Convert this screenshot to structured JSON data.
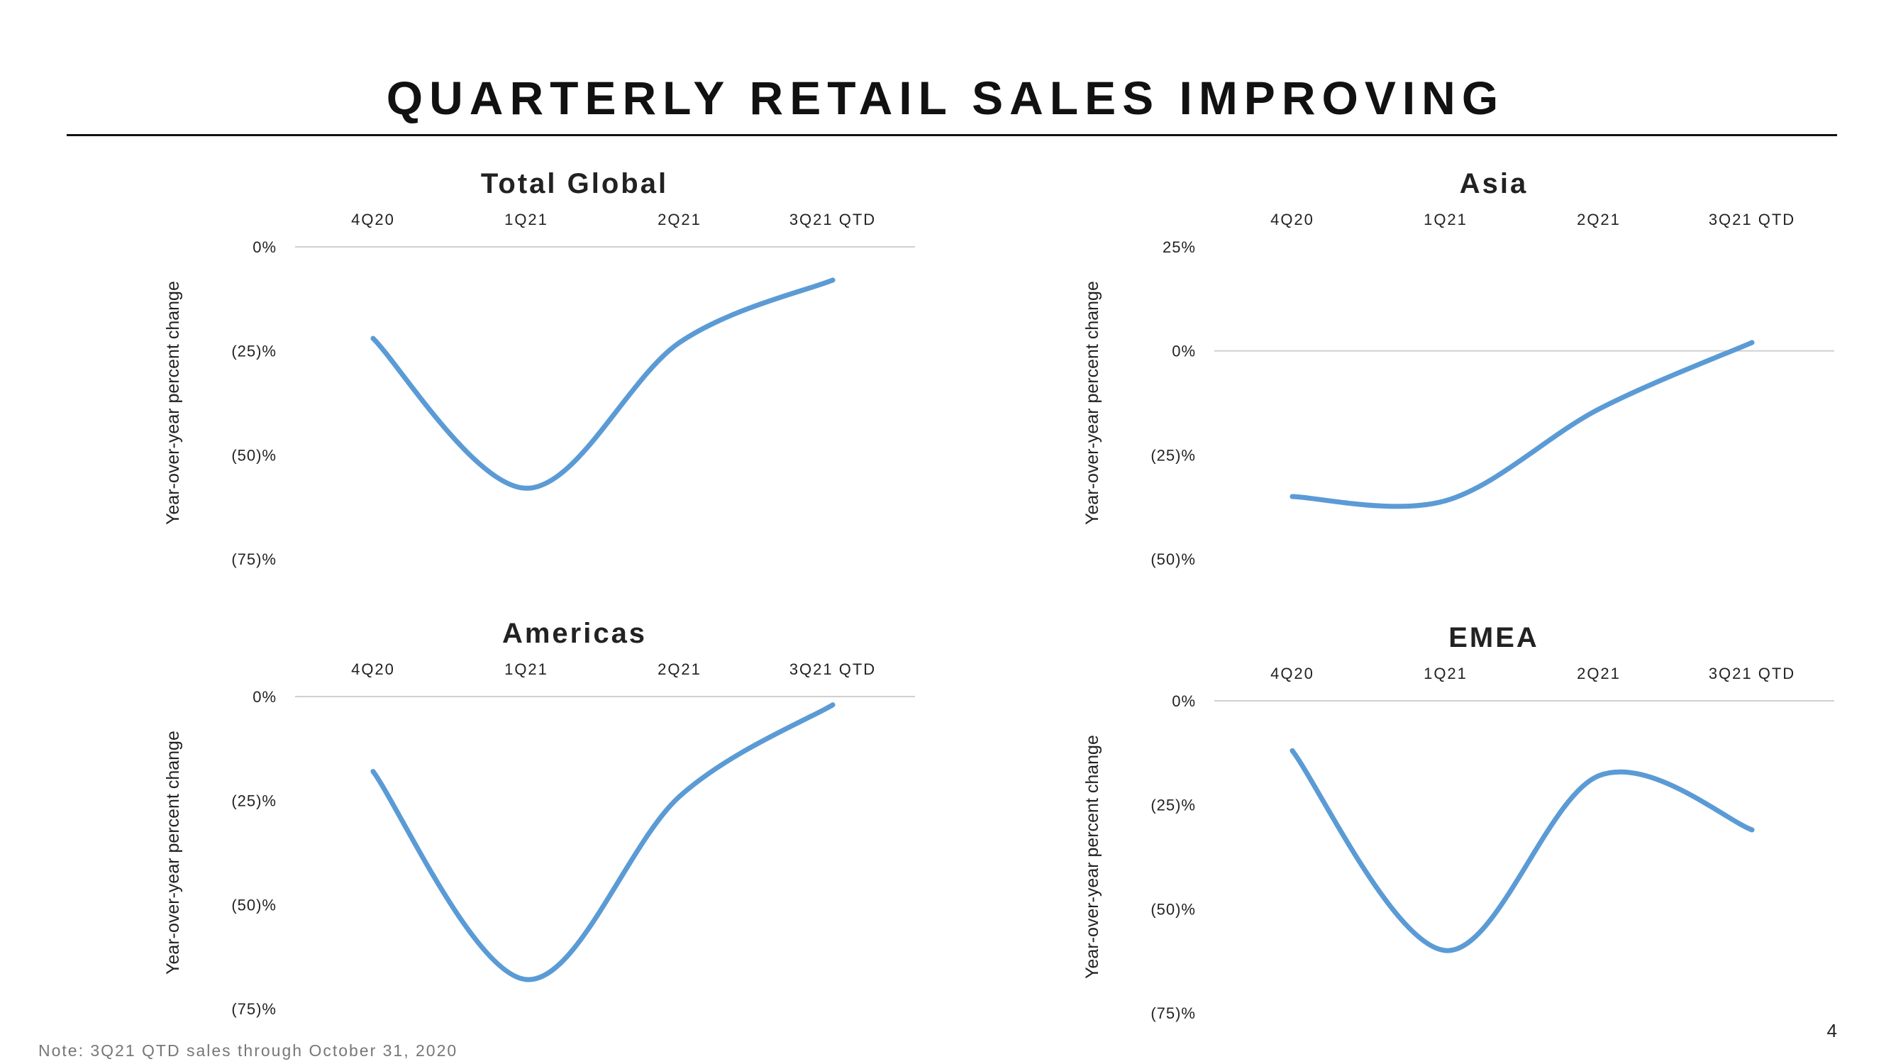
{
  "slide": {
    "title": "QUARTERLY RETAIL SALES IMPROVING",
    "footnote": "Note: 3Q21 QTD sales through October 31, 2020",
    "page_number": "4"
  },
  "colors": {
    "line": "#5B9BD5",
    "gridline": "#D0D0D0",
    "text": "#222222"
  },
  "chart_data": [
    {
      "type": "line",
      "title": "Total Global",
      "ylabel": "Year-over-year percent change",
      "categories": [
        "4Q20",
        "1Q21",
        "2Q21",
        "3Q21 QTD"
      ],
      "x_axis_position": "top",
      "yticks": [
        0,
        -25,
        -50,
        -75
      ],
      "ytick_labels": [
        "0%",
        "(25)%",
        "(50)%",
        "(75)%"
      ],
      "ylim": [
        -75,
        0
      ],
      "gridline_at": 0,
      "series": [
        {
          "values": [
            -22,
            -58,
            -23,
            -8
          ]
        }
      ]
    },
    {
      "type": "line",
      "title": "Asia",
      "ylabel": "Year-over-year percent change",
      "categories": [
        "4Q20",
        "1Q21",
        "2Q21",
        "3Q21 QTD"
      ],
      "x_axis_position": "top",
      "yticks": [
        25,
        0,
        -25,
        -50
      ],
      "ytick_labels": [
        "25%",
        "0%",
        "(25)%",
        "(50)%"
      ],
      "ylim": [
        -50,
        25
      ],
      "gridline_at": 0,
      "series": [
        {
          "values": [
            -35,
            -36,
            -14,
            2
          ]
        }
      ]
    },
    {
      "type": "line",
      "title": "Americas",
      "ylabel": "Year-over-year percent change",
      "categories": [
        "4Q20",
        "1Q21",
        "2Q21",
        "3Q21 QTD"
      ],
      "x_axis_position": "top",
      "yticks": [
        0,
        -25,
        -50,
        -75
      ],
      "ytick_labels": [
        "0%",
        "(25)%",
        "(50)%",
        "(75)%"
      ],
      "ylim": [
        -75,
        0
      ],
      "gridline_at": 0,
      "series": [
        {
          "values": [
            -18,
            -68,
            -24,
            -2
          ]
        }
      ]
    },
    {
      "type": "line",
      "title": "EMEA",
      "ylabel": "Year-over-year percent change",
      "categories": [
        "4Q20",
        "1Q21",
        "2Q21",
        "3Q21 QTD"
      ],
      "x_axis_position": "top",
      "yticks": [
        0,
        -25,
        -50,
        -75
      ],
      "ytick_labels": [
        "0%",
        "(25)%",
        "(50)%",
        "(75)%"
      ],
      "ylim": [
        -75,
        0
      ],
      "gridline_at": 0,
      "series": [
        {
          "values": [
            -12,
            -60,
            -18,
            -31
          ]
        }
      ]
    }
  ]
}
